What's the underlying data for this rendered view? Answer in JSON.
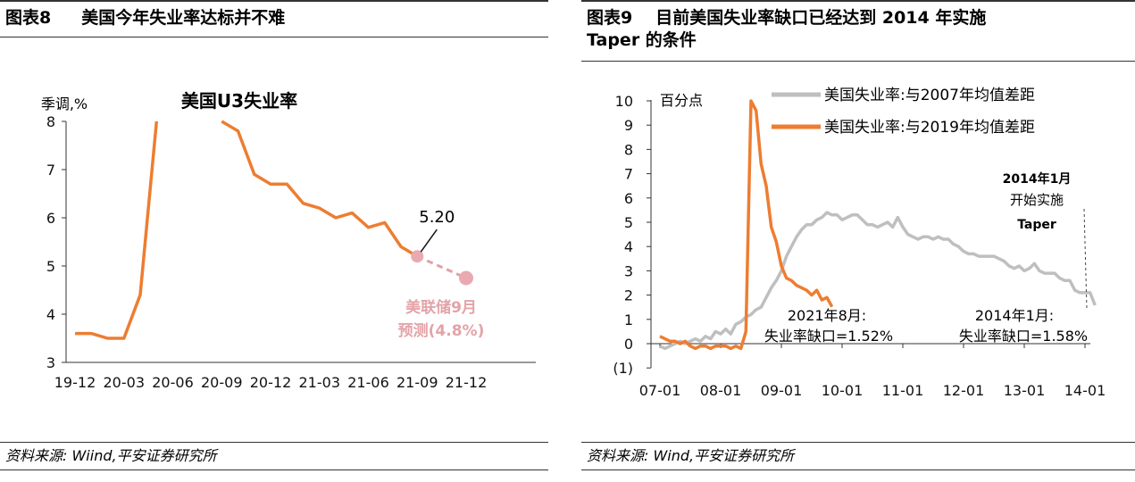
{
  "left": {
    "figure_no": "图表8",
    "figure_title": "美国今年失业率达标并不难",
    "source": "资料来源: Wiind,平安证券研究所",
    "chart_data": {
      "type": "line",
      "title": "美国U3失业率",
      "ylabel": "季调,%",
      "ylim": [
        3,
        8
      ],
      "yticks": [
        "3",
        "4",
        "5",
        "6",
        "7",
        "8"
      ],
      "xticks": [
        "19-12",
        "20-03",
        "20-06",
        "20-09",
        "20-12",
        "21-03",
        "21-06",
        "21-09",
        "21-12"
      ],
      "series": [
        {
          "color": "#ED7D31",
          "points": [
            [
              "19-12",
              3.6
            ],
            [
              "20-01",
              3.6
            ],
            [
              "20-02",
              3.5
            ],
            [
              "20-03",
              3.5
            ],
            [
              "20-04",
              4.4
            ],
            [
              "20-05",
              8.0
            ],
            [
              "20-09",
              8.0
            ],
            [
              "20-10",
              7.8
            ],
            [
              "20-11",
              6.9
            ],
            [
              "20-12",
              6.7
            ],
            [
              "21-01",
              6.7
            ],
            [
              "21-02",
              6.3
            ],
            [
              "21-03",
              6.2
            ],
            [
              "21-04",
              6.0
            ],
            [
              "21-05",
              6.1
            ],
            [
              "21-06",
              5.8
            ],
            [
              "21-07",
              5.9
            ],
            [
              "21-08",
              5.4
            ],
            [
              "21-09",
              5.2
            ]
          ]
        },
        {
          "style": "dashed",
          "color": "#E0A0A5",
          "points": [
            [
              "21-09",
              5.2
            ],
            [
              "21-12",
              4.75
            ]
          ]
        }
      ],
      "annotations": {
        "value_label": "5.20",
        "forecast_line1": "美联储9月",
        "forecast_line2": "预测(4.8%)"
      }
    }
  },
  "right": {
    "figure_no": "图表9",
    "figure_title_line1": "目前美国失业率缺口已经达到 2014 年实施",
    "figure_title_line2": "Taper 的条件",
    "source": "资料来源: Wind,平安证券研究所",
    "chart_data": {
      "type": "line",
      "ylabel": "百分点",
      "ylim": [
        -1,
        10
      ],
      "yticks": [
        "(1)",
        "0",
        "1",
        "2",
        "3",
        "4",
        "5",
        "6",
        "7",
        "8",
        "9",
        "10"
      ],
      "xticks": [
        "07-01",
        "08-01",
        "09-01",
        "10-01",
        "11-01",
        "12-01",
        "13-01",
        "14-01"
      ],
      "series": [
        {
          "name": "美国失业率:与2007年均值差距",
          "color": "#BFBFBF",
          "x_start": "07-01",
          "values": [
            -0.1,
            -0.2,
            -0.1,
            0.0,
            0.1,
            0.0,
            0.1,
            0.2,
            0.1,
            0.3,
            0.2,
            0.5,
            0.4,
            0.6,
            0.4,
            0.8,
            0.9,
            1.1,
            1.2,
            1.4,
            1.5,
            1.9,
            2.3,
            2.6,
            3.0,
            3.6,
            4.0,
            4.4,
            4.7,
            4.9,
            4.9,
            5.1,
            5.2,
            5.4,
            5.3,
            5.3,
            5.1,
            5.2,
            5.3,
            5.3,
            5.1,
            4.9,
            4.9,
            4.8,
            4.9,
            5.0,
            4.8,
            5.2,
            4.8,
            4.5,
            4.4,
            4.3,
            4.4,
            4.4,
            4.3,
            4.4,
            4.3,
            4.3,
            4.1,
            4.0,
            3.8,
            3.7,
            3.7,
            3.6,
            3.6,
            3.6,
            3.6,
            3.5,
            3.4,
            3.2,
            3.1,
            3.2,
            3.0,
            3.1,
            3.3,
            3.0,
            2.9,
            2.9,
            2.9,
            2.7,
            2.6,
            2.6,
            2.2,
            2.1,
            2.1,
            2.1,
            1.58
          ]
        },
        {
          "name": "美国失业率:与2019年均值差距",
          "color": "#ED7D31",
          "x_start": "07-01",
          "values": [
            0.3,
            0.2,
            0.1,
            0.1,
            0.0,
            0.1,
            -0.1,
            -0.2,
            -0.1,
            -0.1,
            -0.2,
            -0.1,
            -0.1,
            -0.1,
            -0.2,
            -0.1,
            -0.2,
            0.5,
            10.5,
            9.6,
            7.4,
            6.5,
            4.8,
            4.2,
            3.2,
            2.7,
            2.6,
            2.4,
            2.3,
            2.2,
            2.0,
            2.2,
            1.8,
            1.9,
            1.52
          ]
        }
      ],
      "annotations": {
        "left_note_line1": "2021年8月:",
        "left_note_line2": "失业率缺口=1.52%",
        "right_note_line1": "2014年1月:",
        "right_note_line2": "失业率缺口=1.58%",
        "taper_line1": "2014年1月",
        "taper_line2": "开始实施",
        "taper_line3": "Taper"
      }
    }
  }
}
